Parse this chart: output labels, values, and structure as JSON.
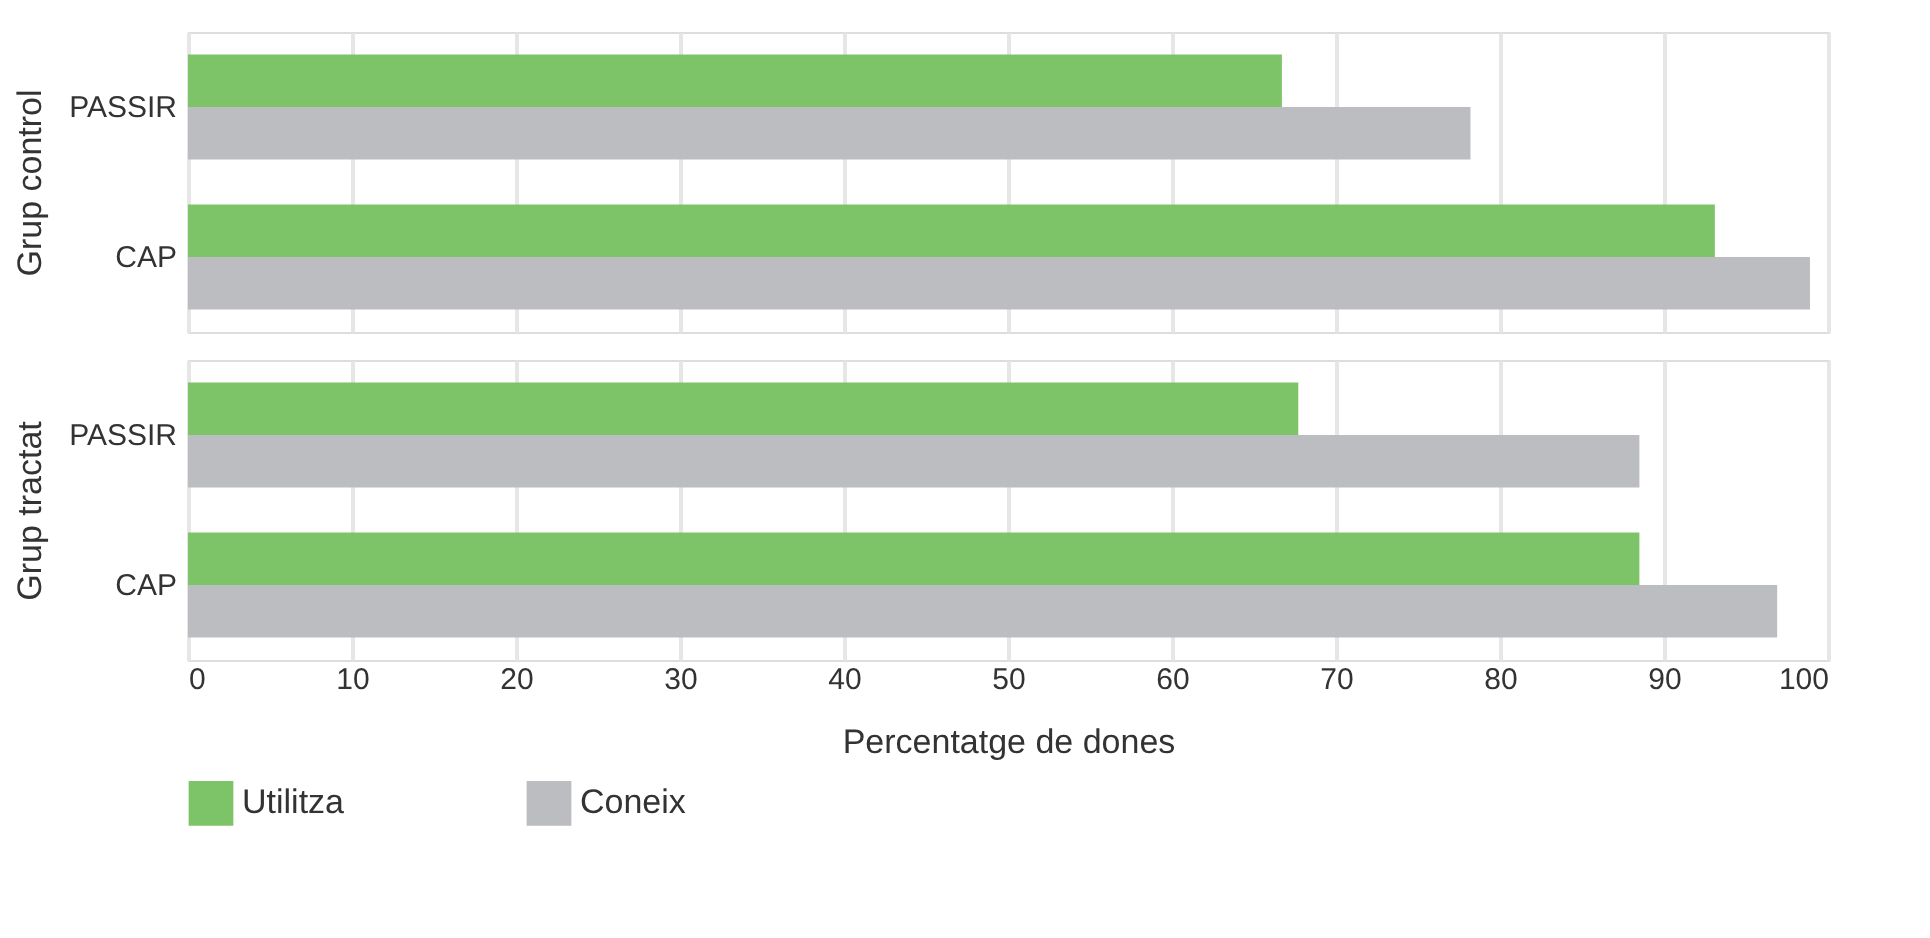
{
  "chart_data": [
    {
      "type": "bar",
      "orientation": "horizontal",
      "ylabel": "Grup control",
      "categories": [
        "PASSIR",
        "CAP"
      ],
      "series": [
        {
          "name": "Utilitza",
          "color": "#7dc367",
          "values": [
            66.7,
            93.1
          ]
        },
        {
          "name": "Coneix",
          "color": "#bcbdc1",
          "values": [
            78.2,
            98.9
          ]
        }
      ],
      "xlim": [
        0,
        100
      ],
      "xticks": [
        0,
        10,
        20,
        30,
        40,
        50,
        60,
        70,
        80,
        90,
        100
      ],
      "grid": "x",
      "tick_labels": "y",
      "legend": "bottom"
    },
    {
      "type": "bar",
      "orientation": "horizontal",
      "ylabel": "Grup tractat",
      "xlabel": "Percentatge de dones",
      "categories": [
        "PASSIR",
        "CAP"
      ],
      "series": [
        {
          "name": "Utilitza",
          "color": "#7dc367",
          "values": [
            67.7,
            88.5
          ]
        },
        {
          "name": "Coneix",
          "color": "#bcbdc1",
          "values": [
            88.5,
            96.9
          ]
        }
      ],
      "xlim": [
        0,
        100
      ],
      "xticks": [
        0,
        10,
        20,
        30,
        40,
        50,
        60,
        70,
        80,
        90,
        100
      ],
      "grid": "x",
      "legend": "bottom"
    }
  ]
}
